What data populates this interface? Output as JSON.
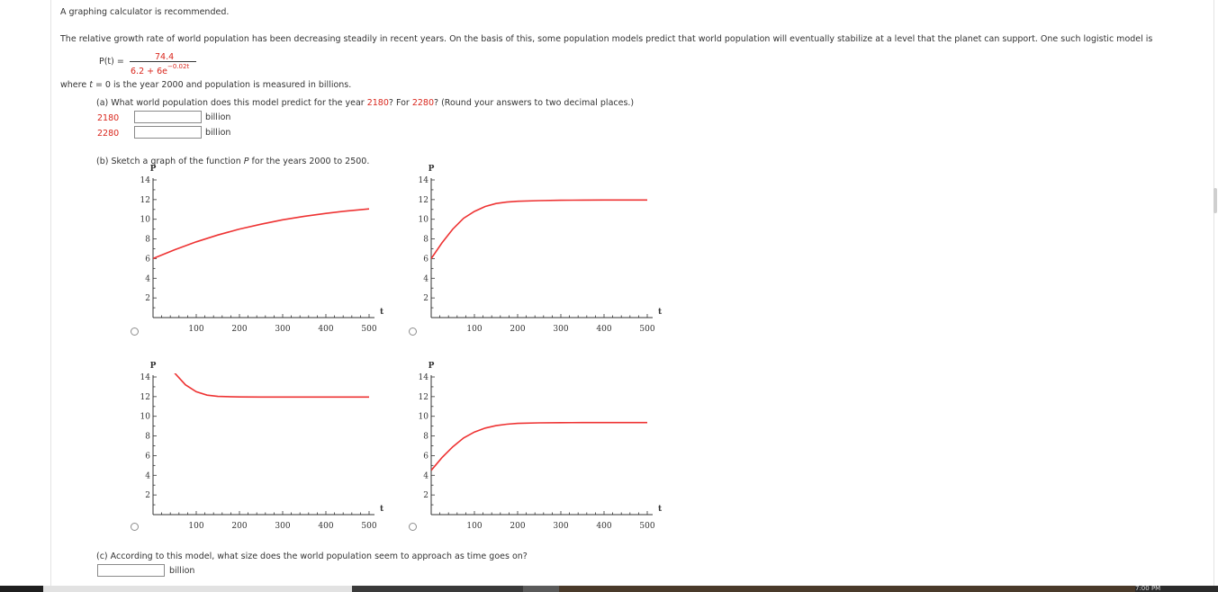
{
  "intro": "A graphing calculator is recommended.",
  "problem_text": "The relative growth rate of world population has been decreasing steadily in recent years. On the basis of this, some population models predict that world population will eventually stabilize at a level that the planet can support. One such logistic model is",
  "formula": {
    "lhs": "P(t) =",
    "numerator": "74.4",
    "den_prefix": "6.2 + 6e",
    "den_exponent": "−0.02t"
  },
  "where_prefix": "where ",
  "where_var": "t",
  "where_suffix": " = 0 is the year 2000 and population is measured in billions.",
  "part_a": {
    "q1": "(a) What world population does this model predict for the year ",
    "year1": "2180",
    "q2": "? For ",
    "year2": "2280",
    "q3": "? (Round your answers to two decimal places.)",
    "row1_label": "2180",
    "row2_label": "2280",
    "unit": "billion"
  },
  "part_b": {
    "q_prefix": "(b) Sketch a graph of the function ",
    "q_var": "P",
    "q_suffix": " for the years 2000 to 2500."
  },
  "part_c": {
    "question": "(c) According to this model, what size does the world population seem to approach as time goes on?",
    "unit": "billion"
  },
  "taskbar": {
    "clock": "7:00 PM"
  },
  "chart_data": [
    {
      "type": "line",
      "option": "top-left",
      "xlabel": "t",
      "ylabel": "P",
      "xlim": [
        0,
        500
      ],
      "ylim": [
        0,
        14
      ],
      "xticks": [
        100,
        200,
        300,
        400,
        500
      ],
      "yticks": [
        2,
        4,
        6,
        8,
        10,
        12,
        14
      ],
      "line_color": "#ee3333",
      "series": [
        {
          "x": [
            0,
            50,
            100,
            150,
            200,
            250,
            300,
            350,
            400,
            450,
            500
          ],
          "y": [
            6.0,
            6.9,
            7.7,
            8.4,
            9.0,
            9.5,
            9.95,
            10.3,
            10.6,
            10.85,
            11.05
          ]
        }
      ]
    },
    {
      "type": "line",
      "option": "top-right",
      "xlabel": "t",
      "ylabel": "P",
      "xlim": [
        0,
        500
      ],
      "ylim": [
        0,
        14
      ],
      "xticks": [
        100,
        200,
        300,
        400,
        500
      ],
      "yticks": [
        2,
        4,
        6,
        8,
        10,
        12,
        14
      ],
      "line_color": "#ee3333",
      "series": [
        {
          "x": [
            0,
            25,
            50,
            75,
            100,
            125,
            150,
            175,
            200,
            250,
            300,
            350,
            400,
            450,
            500
          ],
          "y": [
            6.0,
            7.6,
            9.0,
            10.1,
            10.8,
            11.3,
            11.6,
            11.75,
            11.83,
            11.9,
            11.93,
            11.95,
            11.96,
            11.96,
            11.96
          ]
        }
      ]
    },
    {
      "type": "line",
      "option": "bottom-left",
      "xlabel": "t",
      "ylabel": "P",
      "xlim": [
        0,
        500
      ],
      "ylim": [
        0,
        14
      ],
      "xticks": [
        100,
        200,
        300,
        400,
        500
      ],
      "yticks": [
        2,
        4,
        6,
        8,
        10,
        12,
        14
      ],
      "line_color": "#ee3333",
      "series": [
        {
          "x": [
            0,
            50,
            75,
            100,
            125,
            150,
            200,
            250,
            300,
            350,
            400,
            450,
            500
          ],
          "y": [
            16.5,
            14.4,
            13.2,
            12.5,
            12.15,
            12.02,
            11.97,
            11.96,
            11.96,
            11.96,
            11.96,
            11.96,
            11.96
          ]
        }
      ]
    },
    {
      "type": "line",
      "option": "bottom-right",
      "xlabel": "t",
      "ylabel": "P",
      "xlim": [
        0,
        500
      ],
      "ylim": [
        0,
        14
      ],
      "xticks": [
        100,
        200,
        300,
        400,
        500
      ],
      "yticks": [
        2,
        4,
        6,
        8,
        10,
        12,
        14
      ],
      "line_color": "#ee3333",
      "series": [
        {
          "x": [
            0,
            25,
            50,
            75,
            100,
            125,
            150,
            175,
            200,
            250,
            300,
            350,
            400,
            450,
            500
          ],
          "y": [
            4.5,
            5.8,
            6.9,
            7.8,
            8.4,
            8.8,
            9.05,
            9.2,
            9.28,
            9.33,
            9.35,
            9.36,
            9.36,
            9.36,
            9.36
          ]
        }
      ]
    }
  ]
}
